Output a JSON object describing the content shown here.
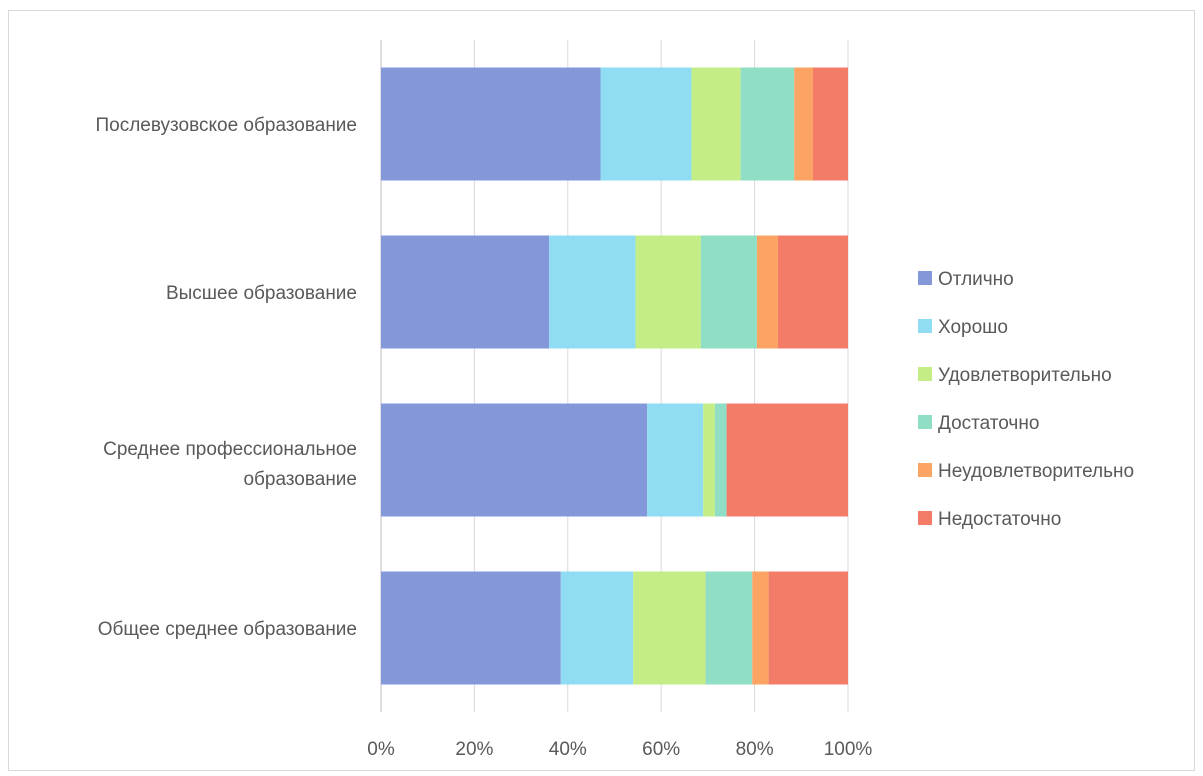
{
  "chart_data": {
    "type": "bar",
    "orientation": "horizontal",
    "stacked": "percent",
    "categories": [
      "Послевузовское образование",
      "Высшее образование",
      "Среднее профессиональное образование",
      "Общее среднее образование"
    ],
    "series": [
      {
        "name": "Отлично",
        "color": "#8497d9",
        "values": [
          47,
          36,
          57,
          38.5
        ]
      },
      {
        "name": "Хорошо",
        "color": "#8fdcf3",
        "values": [
          19.5,
          18.5,
          12,
          15.5
        ]
      },
      {
        "name": "Удовлетворительно",
        "color": "#c4ee85",
        "values": [
          10.5,
          14,
          2.5,
          15.5
        ]
      },
      {
        "name": "Достаточно",
        "color": "#91dec7",
        "values": [
          11.5,
          12,
          2.5,
          10
        ]
      },
      {
        "name": "Неудовлетворительно",
        "color": "#fba463",
        "values": [
          4,
          4.5,
          0,
          3.5
        ]
      },
      {
        "name": "Недостаточно",
        "color": "#f37c69",
        "values": [
          7.5,
          15,
          26,
          17
        ]
      }
    ],
    "xlim": [
      0,
      100
    ],
    "x_ticks": [
      "0%",
      "20%",
      "40%",
      "60%",
      "80%",
      "100%"
    ],
    "grid": true,
    "legend_position": "right",
    "title": "",
    "xlabel": "",
    "ylabel": ""
  }
}
